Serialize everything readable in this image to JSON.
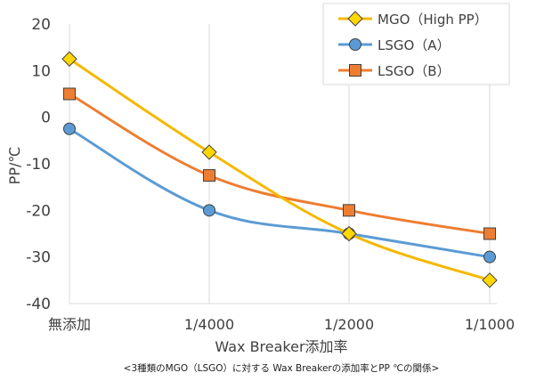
{
  "chart_data": {
    "type": "line",
    "categories": [
      "無添加",
      "1/4000",
      "1/2000",
      "1/1000"
    ],
    "series": [
      {
        "name": "MGO（High PP）",
        "values": [
          12.5,
          -7.5,
          -25,
          -35
        ],
        "color": "#F5B800",
        "marker": "diamond",
        "marker_fill": "#FFD700"
      },
      {
        "name": "LSGO（A）",
        "values": [
          -2.5,
          -20,
          -25,
          -30
        ],
        "color": "#5B9BD5",
        "marker": "circle",
        "marker_fill": "#5B9BD5"
      },
      {
        "name": "LSGO（B）",
        "values": [
          5,
          -12.5,
          -20,
          -25
        ],
        "color": "#ED7D31",
        "marker": "square",
        "marker_fill": "#ED7D31"
      }
    ],
    "yticks": [
      20,
      10,
      0,
      -10,
      -20,
      -30,
      -40
    ],
    "ylim": [
      -40,
      20
    ],
    "ylabel": "PP/℃",
    "xlabel": "Wax Breaker添加率",
    "grid": "vertical",
    "legend": "top-right"
  },
  "caption": "<3種類のMGO（LSGO）に対する Wax Breakerの添加率とPP ℃の関係>"
}
